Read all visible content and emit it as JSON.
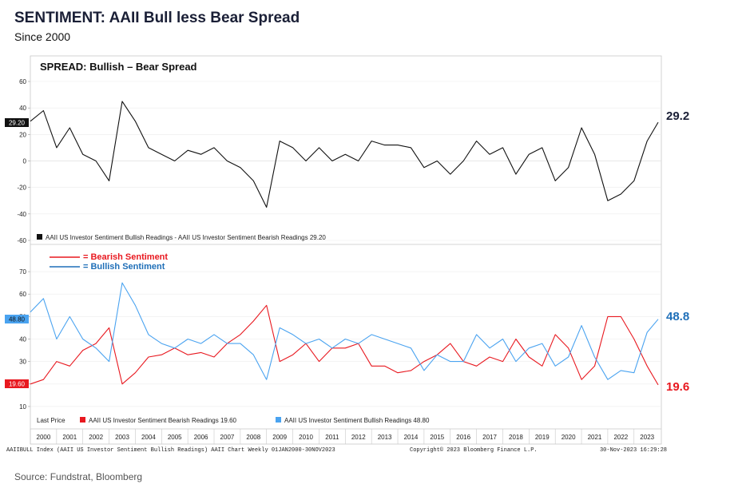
{
  "header": {
    "title": "SENTIMENT: AAII Bull less Bear Spread",
    "subtitle": "Since 2000"
  },
  "source": "Source: Fundstrat, Bloomberg",
  "footer": {
    "left": "AAIIBULL Index (AAII US Investor Sentiment Bullish Readings) AAII Chart  Weekly 01JAN2000-30NOV2023",
    "center": "Copyright© 2023 Bloomberg Finance L.P.",
    "right": "30-Nov-2023 16:29:28"
  },
  "colors": {
    "spread": "#111111",
    "bearish": "#e8181f",
    "bullish": "#4aa3f0",
    "bullish_text": "#1f6fb8",
    "bearish_text": "#e8181f"
  },
  "chart_data": [
    {
      "type": "line",
      "panel": "spread",
      "title": "SPREAD: Bullish – Bear Spread",
      "x_range": [
        2000.0,
        2023.92
      ],
      "ylim": [
        -60,
        60
      ],
      "yticks": [
        60,
        40,
        20,
        0,
        -20,
        -40,
        -60
      ],
      "last_value_tag": "29.20",
      "callout": "29.2",
      "legend": "AAII US Investor Sentiment Bullish Readings - AAII US Investor Sentiment Bearish Readings 29.20",
      "series": [
        {
          "name": "AAII US Investor Sentiment Bullish Readings - AAII US Investor Sentiment Bearish Readings",
          "color": "#111111",
          "x": [
            2000.0,
            2000.5,
            2001.0,
            2001.5,
            2002.0,
            2002.5,
            2003.0,
            2003.5,
            2004.0,
            2004.5,
            2005.0,
            2005.5,
            2006.0,
            2006.5,
            2007.0,
            2007.5,
            2008.0,
            2008.5,
            2009.0,
            2009.5,
            2010.0,
            2010.5,
            2011.0,
            2011.5,
            2012.0,
            2012.5,
            2013.0,
            2013.5,
            2014.0,
            2014.5,
            2015.0,
            2015.5,
            2016.0,
            2016.5,
            2017.0,
            2017.5,
            2018.0,
            2018.5,
            2019.0,
            2019.5,
            2020.0,
            2020.5,
            2021.0,
            2021.5,
            2022.0,
            2022.5,
            2023.0,
            2023.5,
            2023.92
          ],
          "y": [
            30,
            38,
            10,
            25,
            5,
            0,
            -15,
            45,
            30,
            10,
            5,
            0,
            8,
            5,
            10,
            0,
            -5,
            -15,
            -35,
            15,
            10,
            0,
            10,
            0,
            5,
            0,
            15,
            12,
            12,
            10,
            -5,
            0,
            -10,
            0,
            15,
            5,
            10,
            -10,
            5,
            10,
            -15,
            -5,
            25,
            5,
            -30,
            -25,
            -15,
            15,
            29.2
          ]
        }
      ]
    },
    {
      "type": "line",
      "panel": "sentiment",
      "x_range": [
        2000.0,
        2023.92
      ],
      "ylim": [
        5,
        75
      ],
      "yticks": [
        70,
        60,
        50,
        40,
        30,
        20,
        10
      ],
      "xticks": [
        "2000",
        "2001",
        "2002",
        "2003",
        "2004",
        "2005",
        "2006",
        "2007",
        "2008",
        "2009",
        "2010",
        "2011",
        "2012",
        "2013",
        "2014",
        "2015",
        "2016",
        "2017",
        "2018",
        "2019",
        "2020",
        "2021",
        "2022",
        "2023"
      ],
      "key": [
        {
          "label": "= Bearish Sentiment",
          "color": "#e8181f"
        },
        {
          "label": "= Bullish Sentiment",
          "color": "#1f6fb8"
        }
      ],
      "legend": {
        "prefix": "Last Price",
        "bearish": "AAII US Investor Sentiment Bearish Readings 19.60",
        "bullish": "AAII US Investor Sentiment Bullish Readings 48.80"
      },
      "tags": {
        "bullish": "48.80",
        "bearish": "19.60"
      },
      "callouts": {
        "bullish": "48.8",
        "bearish": "19.6"
      },
      "series": [
        {
          "name": "AAII US Investor Sentiment Bearish Readings",
          "color": "#e8181f",
          "x": [
            2000.0,
            2000.5,
            2001.0,
            2001.5,
            2002.0,
            2002.5,
            2003.0,
            2003.5,
            2004.0,
            2004.5,
            2005.0,
            2005.5,
            2006.0,
            2006.5,
            2007.0,
            2007.5,
            2008.0,
            2008.5,
            2009.0,
            2009.5,
            2010.0,
            2010.5,
            2011.0,
            2011.5,
            2012.0,
            2012.5,
            2013.0,
            2013.5,
            2014.0,
            2014.5,
            2015.0,
            2015.5,
            2016.0,
            2016.5,
            2017.0,
            2017.5,
            2018.0,
            2018.5,
            2019.0,
            2019.5,
            2020.0,
            2020.5,
            2021.0,
            2021.5,
            2022.0,
            2022.5,
            2023.0,
            2023.5,
            2023.92
          ],
          "y": [
            20,
            22,
            30,
            28,
            35,
            38,
            45,
            20,
            25,
            32,
            33,
            36,
            33,
            34,
            32,
            38,
            42,
            48,
            55,
            30,
            33,
            38,
            30,
            36,
            36,
            38,
            28,
            28,
            25,
            26,
            30,
            33,
            38,
            30,
            28,
            32,
            30,
            40,
            32,
            28,
            42,
            36,
            22,
            28,
            50,
            50,
            40,
            28,
            19.6
          ]
        },
        {
          "name": "AAII US Investor Sentiment Bullish Readings",
          "color": "#4aa3f0",
          "x": [
            2000.0,
            2000.5,
            2001.0,
            2001.5,
            2002.0,
            2002.5,
            2003.0,
            2003.5,
            2004.0,
            2004.5,
            2005.0,
            2005.5,
            2006.0,
            2006.5,
            2007.0,
            2007.5,
            2008.0,
            2008.5,
            2009.0,
            2009.5,
            2010.0,
            2010.5,
            2011.0,
            2011.5,
            2012.0,
            2012.5,
            2013.0,
            2013.5,
            2014.0,
            2014.5,
            2015.0,
            2015.5,
            2016.0,
            2016.5,
            2017.0,
            2017.5,
            2018.0,
            2018.5,
            2019.0,
            2019.5,
            2020.0,
            2020.5,
            2021.0,
            2021.5,
            2022.0,
            2022.5,
            2023.0,
            2023.5,
            2023.92
          ],
          "y": [
            52,
            58,
            40,
            50,
            40,
            36,
            30,
            65,
            55,
            42,
            38,
            36,
            40,
            38,
            42,
            38,
            38,
            33,
            22,
            45,
            42,
            38,
            40,
            36,
            40,
            38,
            42,
            40,
            38,
            36,
            26,
            33,
            30,
            30,
            42,
            36,
            40,
            30,
            36,
            38,
            28,
            32,
            46,
            32,
            22,
            26,
            25,
            43,
            48.8
          ]
        }
      ]
    }
  ]
}
